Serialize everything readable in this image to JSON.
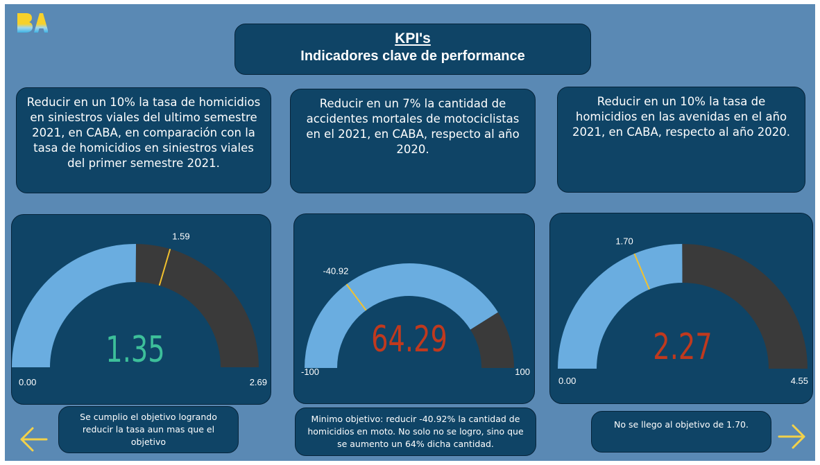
{
  "header": {
    "title": "KPI's",
    "subtitle": "Indicadores clave de performance"
  },
  "kpis": [
    {
      "description": "Reducir en un 10% la tasa de homicidios en siniestros viales del ultimo semestre 2021, en CABA, en comparación con la tasa de homicidios en siniestros viales del primer semestre 2021.",
      "gauge": {
        "min": 0.0,
        "max": 2.69,
        "value": 1.35,
        "target": 1.59,
        "min_label": "0.00",
        "max_label": "2.69",
        "value_label": "1.35",
        "target_label": "1.59",
        "value_color": "#3dbf9a",
        "fill_color": "#6aade0",
        "empty_color": "#3a3a3a",
        "target_color": "#f2c12e"
      },
      "note": "Se cumplio el objetivo logrando reducir la tasa aun mas que el objetivo"
    },
    {
      "description": "Reducir en un 7% la cantidad de accidentes mortales de motociclistas en el 2021, en CABA, respecto al año 2020.",
      "gauge": {
        "min": -100,
        "max": 100,
        "value": 64.29,
        "target": -40.92,
        "min_label": "-100",
        "max_label": "100",
        "value_label": "64.29",
        "target_label": "-40.92",
        "value_color": "#c0391e",
        "fill_color": "#6aade0",
        "empty_color": "#3a3a3a",
        "target_color": "#f2c12e"
      },
      "note": "Minimo objetivo: reducir -40.92% la cantidad de homicidios en moto. No solo no se logro, sino que se aumento un 64% dicha cantidad."
    },
    {
      "description": "Reducir en un 10% la tasa de homicidios en las avenidas en el año 2021, en CABA, respecto al año 2020.",
      "gauge": {
        "min": 0.0,
        "max": 4.55,
        "value": 2.27,
        "target": 1.7,
        "min_label": "0.00",
        "max_label": "4.55",
        "value_label": "2.27",
        "target_label": "1.70",
        "value_color": "#c0391e",
        "fill_color": "#6aade0",
        "empty_color": "#3a3a3a",
        "target_color": "#f2c12e"
      },
      "note": "No se llego al objetivo de 1.70."
    }
  ],
  "nav": {
    "prev_icon": "arrow-left-icon",
    "next_icon": "arrow-right-icon",
    "arrow_color": "#f2d14a"
  },
  "logo": {
    "text": "BA",
    "icon": "ba-logo"
  }
}
